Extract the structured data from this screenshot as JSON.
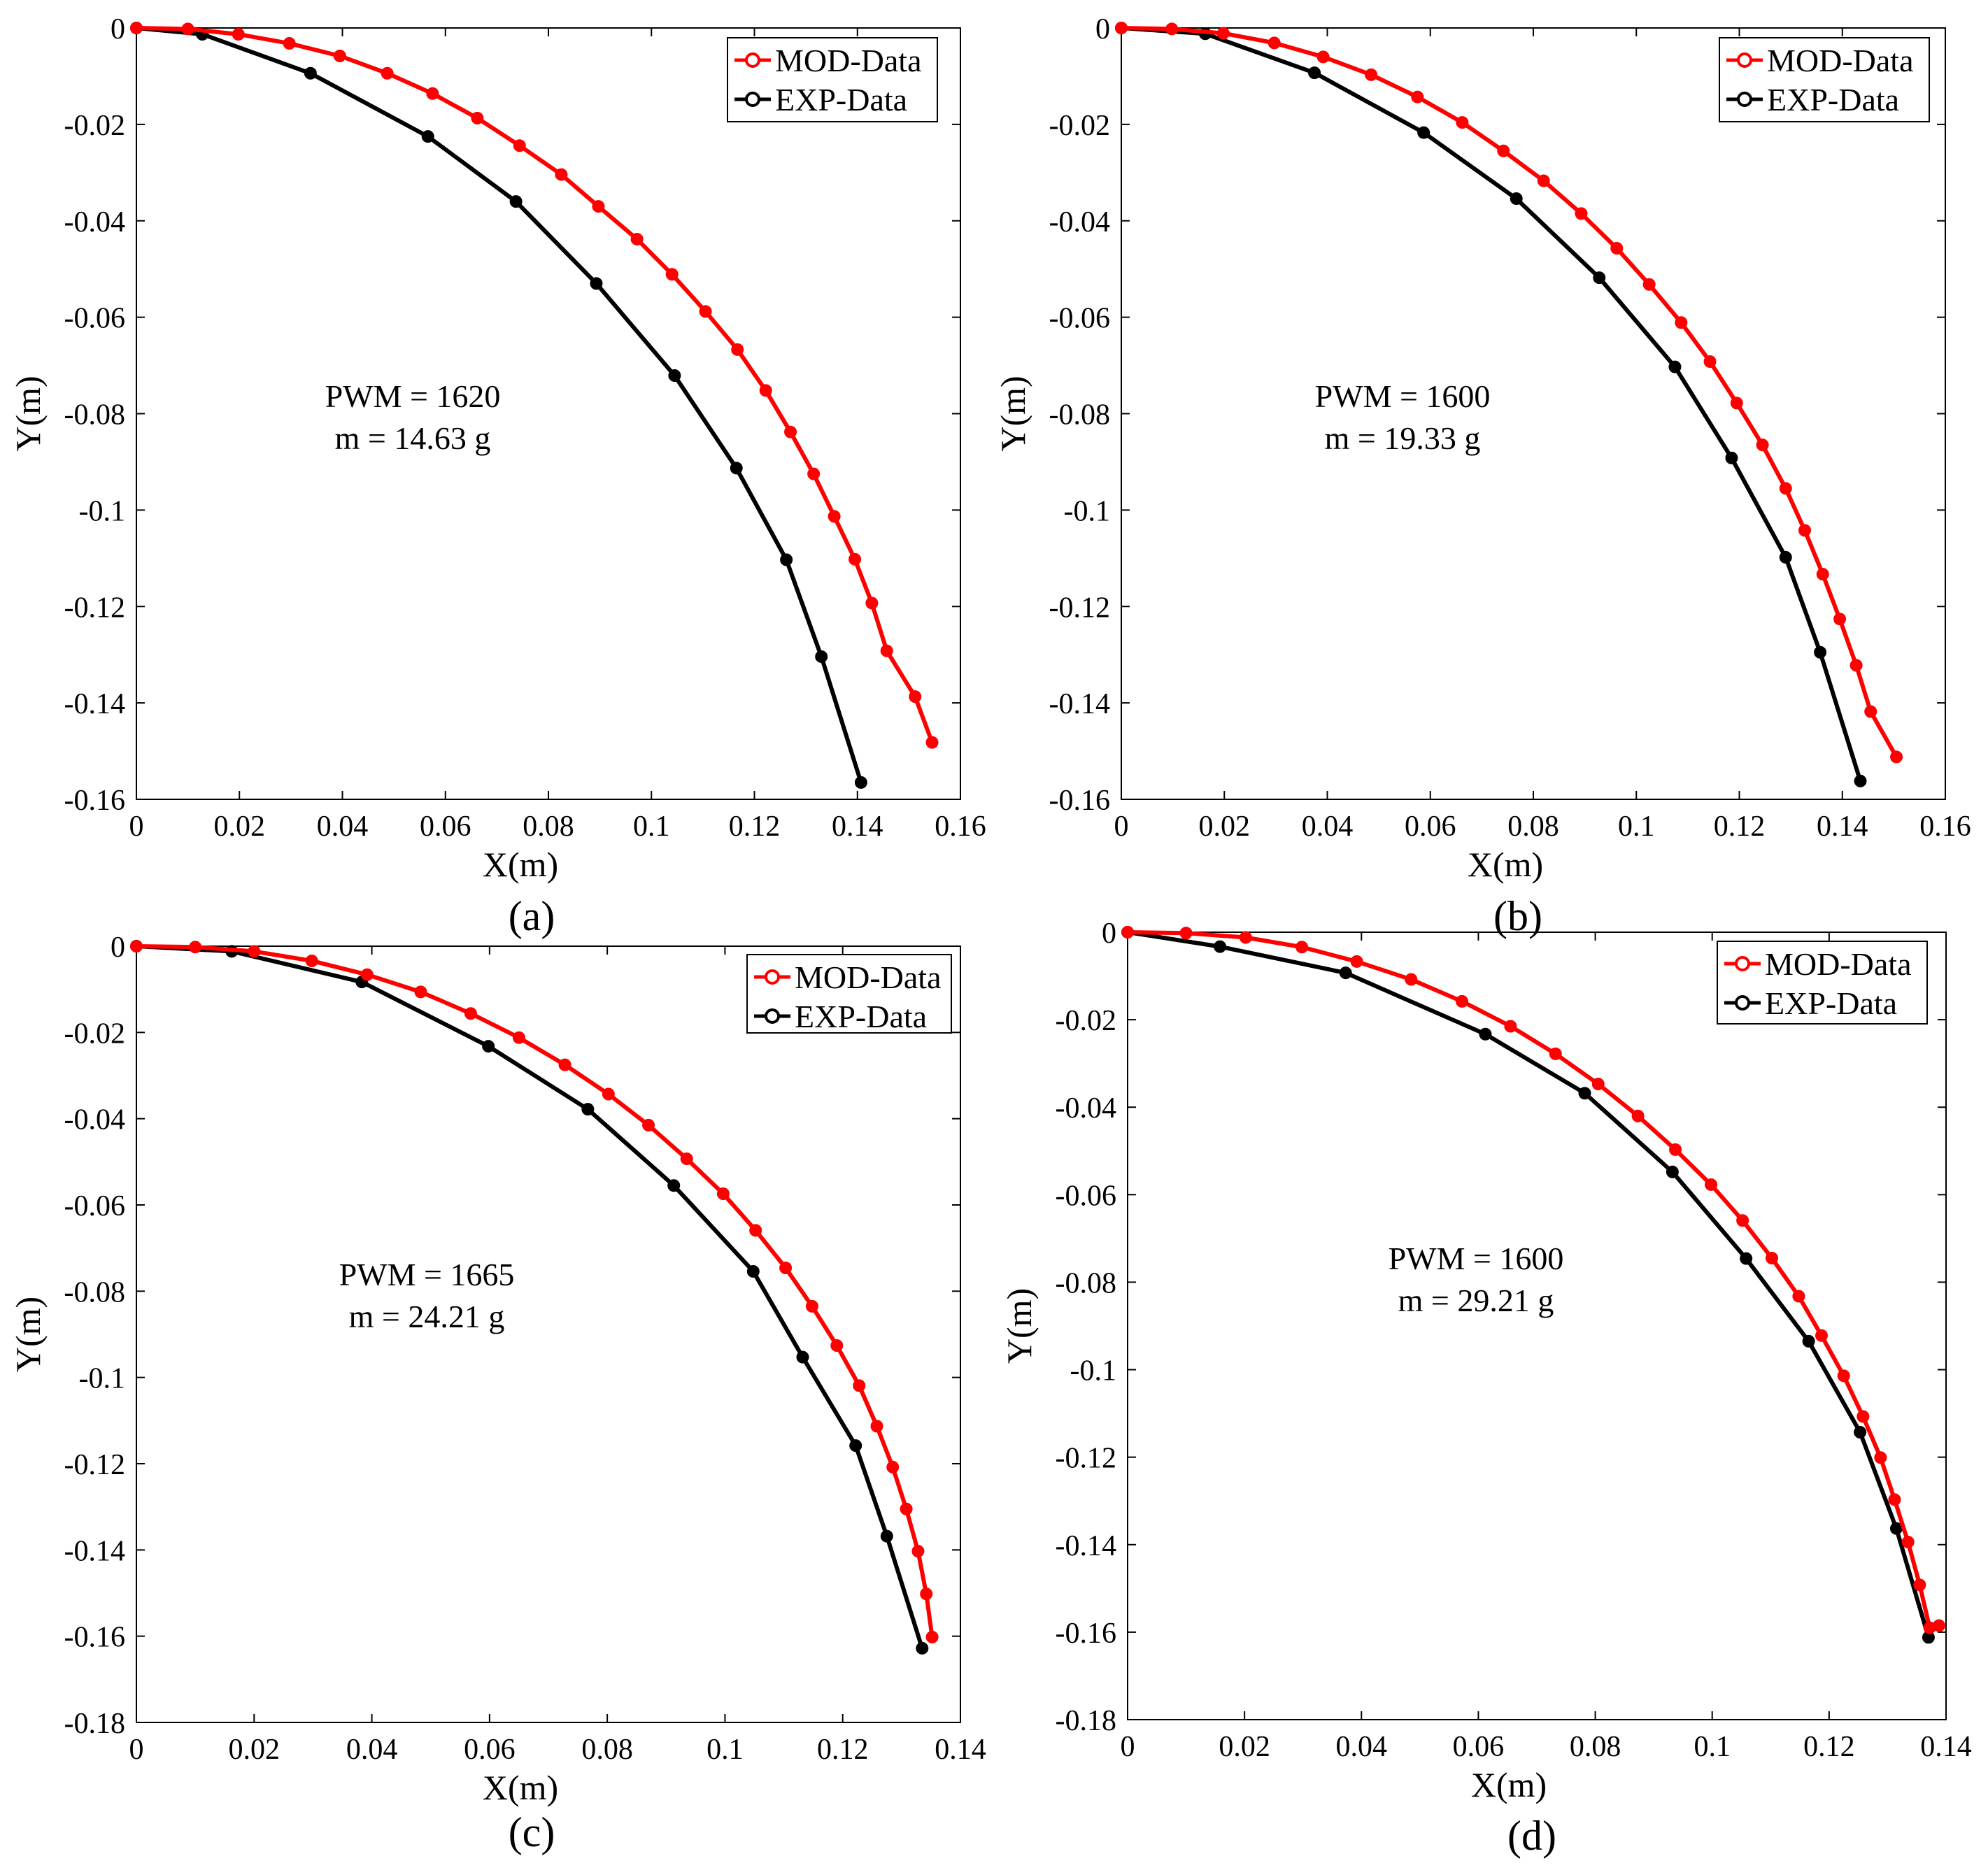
{
  "colors": {
    "mod": "#ff0000",
    "exp": "#000000",
    "axis": "#000000",
    "background": "#ffffff"
  },
  "chart_data": [
    {
      "type": "line",
      "panel_label": "(a)",
      "xlabel": "X(m)",
      "ylabel": "Y(m)",
      "xlim": [
        0,
        0.16
      ],
      "ylim": [
        -0.16,
        0
      ],
      "xticks": [
        0,
        0.02,
        0.04,
        0.06,
        0.08,
        0.1,
        0.12,
        0.14,
        0.16
      ],
      "xtick_labels": [
        "0",
        "0.02",
        "0.04",
        "0.06",
        "0.08",
        "0.1",
        "0.12",
        "0.14",
        "0.16"
      ],
      "yticks": [
        0,
        -0.02,
        -0.04,
        -0.06,
        -0.08,
        -0.1,
        -0.12,
        -0.14,
        -0.16
      ],
      "ytick_labels": [
        "0",
        "-0.02",
        "-0.04",
        "-0.06",
        "-0.08",
        "-0.1",
        "-0.12",
        "-0.14",
        "-0.16"
      ],
      "annotation": [
        "PWM = 1620",
        "m = 14.63 g"
      ],
      "legend": [
        "MOD-Data",
        "EXP-Data"
      ],
      "series": [
        {
          "name": "MOD-Data",
          "x": [
            0,
            0.01,
            0.0198,
            0.0297,
            0.0395,
            0.0487,
            0.0575,
            0.0662,
            0.0744,
            0.0825,
            0.0897,
            0.0972,
            0.104,
            0.1105,
            0.1167,
            0.1222,
            0.127,
            0.1315,
            0.1355,
            0.1395,
            0.1428,
            0.1457,
            0.1512,
            0.1545
          ],
          "y": [
            0,
            -0.0002,
            -0.0013,
            -0.0032,
            -0.0058,
            -0.0094,
            -0.0136,
            -0.0187,
            -0.0244,
            -0.0304,
            -0.037,
            -0.0438,
            -0.0511,
            -0.0588,
            -0.0667,
            -0.0752,
            -0.0838,
            -0.0925,
            -0.1013,
            -0.1102,
            -0.1193,
            -0.1292,
            -0.1387,
            -0.1482
          ]
        },
        {
          "name": "EXP-Data",
          "x": [
            0,
            0.0128,
            0.0338,
            0.0566,
            0.0737,
            0.0893,
            0.1045,
            0.1165,
            0.1262,
            0.133,
            0.1407
          ],
          "y": [
            0,
            -0.0013,
            -0.0094,
            -0.0225,
            -0.036,
            -0.053,
            -0.0721,
            -0.0913,
            -0.1103,
            -0.1304,
            -0.1565
          ]
        }
      ]
    },
    {
      "type": "line",
      "panel_label": "(b)",
      "xlabel": "X(m)",
      "ylabel": "Y(m)",
      "xlim": [
        0,
        0.16
      ],
      "ylim": [
        -0.16,
        0
      ],
      "xticks": [
        0,
        0.02,
        0.04,
        0.06,
        0.08,
        0.1,
        0.12,
        0.14,
        0.16
      ],
      "xtick_labels": [
        "0",
        "0.02",
        "0.04",
        "0.06",
        "0.08",
        "0.1",
        "0.12",
        "0.14",
        "0.16"
      ],
      "yticks": [
        0,
        -0.02,
        -0.04,
        -0.06,
        -0.08,
        -0.1,
        -0.12,
        -0.14,
        -0.16
      ],
      "ytick_labels": [
        "0",
        "-0.02",
        "-0.04",
        "-0.06",
        "-0.08",
        "-0.1",
        "-0.12",
        "-0.14",
        "-0.16"
      ],
      "annotation": [
        "PWM = 1600",
        "m = 19.33 g"
      ],
      "legend": [
        "MOD-Data",
        "EXP-Data"
      ],
      "series": [
        {
          "name": "MOD-Data",
          "x": [
            0,
            0.0098,
            0.0198,
            0.0297,
            0.0392,
            0.0485,
            0.0575,
            0.0662,
            0.0742,
            0.082,
            0.0893,
            0.0962,
            0.1025,
            0.1087,
            0.1143,
            0.1195,
            0.1245,
            0.129,
            0.1327,
            0.1362,
            0.1395,
            0.1427,
            0.1455,
            0.1505
          ],
          "y": [
            0,
            -0.0002,
            -0.0011,
            -0.0031,
            -0.006,
            -0.0097,
            -0.0143,
            -0.0196,
            -0.0255,
            -0.0317,
            -0.0385,
            -0.0457,
            -0.0532,
            -0.0611,
            -0.0692,
            -0.0778,
            -0.0865,
            -0.0955,
            -0.1042,
            -0.1133,
            -0.1226,
            -0.1322,
            -0.1418,
            -0.1512
          ]
        },
        {
          "name": "EXP-Data",
          "x": [
            0,
            0.0163,
            0.0375,
            0.0587,
            0.0767,
            0.0928,
            0.1075,
            0.1185,
            0.129,
            0.1357,
            0.1435
          ],
          "y": [
            0,
            -0.0012,
            -0.0093,
            -0.0217,
            -0.0354,
            -0.0518,
            -0.0703,
            -0.0892,
            -0.1098,
            -0.1295,
            -0.1562
          ]
        }
      ]
    },
    {
      "type": "line",
      "panel_label": "(c)",
      "xlabel": "X(m)",
      "ylabel": "Y(m)",
      "xlim": [
        0,
        0.14
      ],
      "ylim": [
        -0.18,
        0
      ],
      "xticks": [
        0,
        0.02,
        0.04,
        0.06,
        0.08,
        0.1,
        0.12,
        0.14
      ],
      "xtick_labels": [
        "0",
        "0.02",
        "0.04",
        "0.06",
        "0.08",
        "0.1",
        "0.12",
        "0.14"
      ],
      "yticks": [
        0,
        -0.02,
        -0.04,
        -0.06,
        -0.08,
        -0.1,
        -0.12,
        -0.14,
        -0.16,
        -0.18
      ],
      "ytick_labels": [
        "0",
        "-0.02",
        "-0.04",
        "-0.06",
        "-0.08",
        "-0.1",
        "-0.12",
        "-0.14",
        "-0.16",
        "-0.18"
      ],
      "annotation": [
        "PWM = 1665",
        "m = 24.21 g"
      ],
      "legend": [
        "MOD-Data",
        "EXP-Data"
      ],
      "series": [
        {
          "name": "MOD-Data",
          "x": [
            0,
            0.01,
            0.02,
            0.0298,
            0.0392,
            0.0483,
            0.0568,
            0.065,
            0.0728,
            0.0802,
            0.087,
            0.0935,
            0.0997,
            0.1052,
            0.1103,
            0.1148,
            0.119,
            0.1228,
            0.1258,
            0.1285,
            0.1308,
            0.1328,
            0.1342,
            0.1352
          ],
          "y": [
            0,
            -0.0002,
            -0.0012,
            -0.0034,
            -0.0066,
            -0.0106,
            -0.0156,
            -0.0212,
            -0.0275,
            -0.0343,
            -0.0415,
            -0.0493,
            -0.0574,
            -0.0659,
            -0.0746,
            -0.0835,
            -0.0926,
            -0.1019,
            -0.1113,
            -0.1208,
            -0.1305,
            -0.1403,
            -0.1502,
            -0.1602
          ]
        },
        {
          "name": "EXP-Data",
          "x": [
            0,
            0.0162,
            0.0383,
            0.0598,
            0.0767,
            0.0913,
            0.1048,
            0.1132,
            0.1222,
            0.1275,
            0.1335
          ],
          "y": [
            0,
            -0.0012,
            -0.0083,
            -0.0232,
            -0.0378,
            -0.0555,
            -0.0754,
            -0.0953,
            -0.1158,
            -0.1368,
            -0.1628
          ]
        }
      ]
    },
    {
      "type": "line",
      "panel_label": "(d)",
      "xlabel": "X(m)",
      "ylabel": "Y(m)",
      "xlim": [
        0,
        0.14
      ],
      "ylim": [
        -0.18,
        0
      ],
      "xticks": [
        0,
        0.02,
        0.04,
        0.06,
        0.08,
        0.1,
        0.12,
        0.14
      ],
      "xtick_labels": [
        "0",
        "0.02",
        "0.04",
        "0.06",
        "0.08",
        "0.1",
        "0.12",
        "0.14"
      ],
      "yticks": [
        0,
        -0.02,
        -0.04,
        -0.06,
        -0.08,
        -0.1,
        -0.12,
        -0.14,
        -0.16,
        -0.18
      ],
      "ytick_labels": [
        "0",
        "-0.02",
        "-0.04",
        "-0.06",
        "-0.08",
        "-0.1",
        "-0.12",
        "-0.14",
        "-0.16",
        "-0.18"
      ],
      "annotation": [
        "PWM = 1600",
        "m = 29.21 g"
      ],
      "legend": [
        "MOD-Data",
        "EXP-Data"
      ],
      "series": [
        {
          "name": "MOD-Data",
          "x": [
            0,
            0.01,
            0.0202,
            0.0298,
            0.0392,
            0.0485,
            0.0572,
            0.0655,
            0.0732,
            0.0805,
            0.0873,
            0.0937,
            0.0998,
            0.1052,
            0.1102,
            0.1148,
            0.1187,
            0.1225,
            0.1258,
            0.1288,
            0.1312,
            0.1335,
            0.1355,
            0.1372,
            0.1388
          ],
          "y": [
            0,
            -0.0002,
            -0.0012,
            -0.0034,
            -0.0067,
            -0.0108,
            -0.0158,
            -0.0215,
            -0.0278,
            -0.0347,
            -0.042,
            -0.0497,
            -0.0577,
            -0.0659,
            -0.0745,
            -0.0832,
            -0.0922,
            -0.1014,
            -0.1107,
            -0.1201,
            -0.1297,
            -0.1394,
            -0.1492,
            -0.159,
            -0.1585
          ]
        },
        {
          "name": "EXP-Data",
          "x": [
            0,
            0.0158,
            0.0373,
            0.0612,
            0.0782,
            0.0932,
            0.1058,
            0.1165,
            0.1253,
            0.1315,
            0.137
          ],
          "y": [
            0,
            -0.0033,
            -0.0093,
            -0.0233,
            -0.0368,
            -0.0548,
            -0.0746,
            -0.0935,
            -0.1143,
            -0.1363,
            -0.1612
          ]
        }
      ]
    }
  ]
}
